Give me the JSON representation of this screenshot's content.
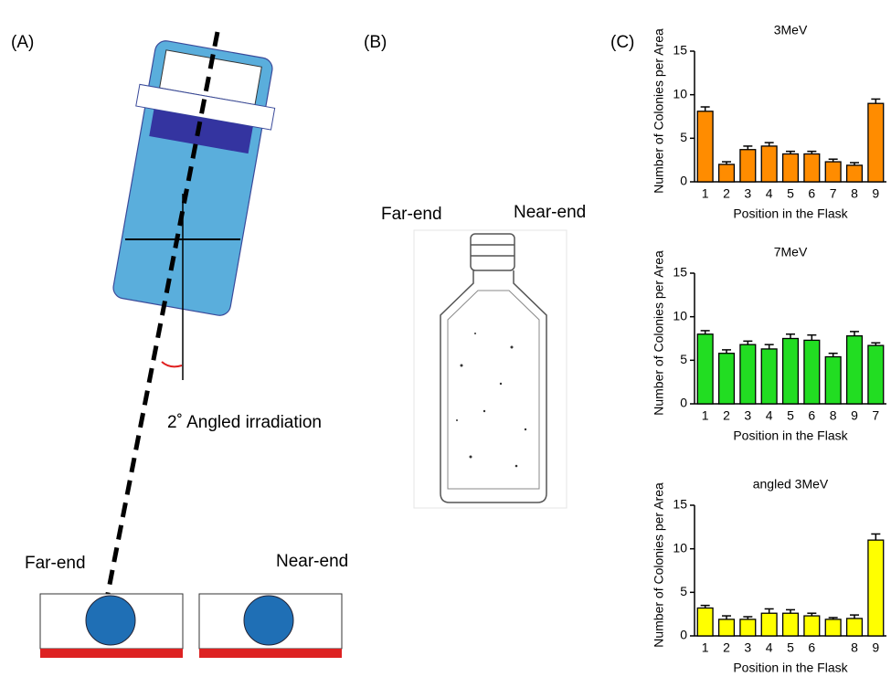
{
  "panels": {
    "a": {
      "label": "(A)",
      "annotation": "2˚ Angled irradiation",
      "left_label": "Far-end",
      "right_label": "Near-end"
    },
    "b": {
      "label": "(B)",
      "left_label": "Far-end",
      "right_label": "Near-end"
    },
    "c": {
      "label": "(C)"
    }
  },
  "chart_data": [
    {
      "type": "bar",
      "title": "3MeV",
      "x_label": "Position in the Flask",
      "y_label": "Number of Colonies per Area",
      "categories": [
        "1",
        "2",
        "3",
        "4",
        "5",
        "6",
        "7",
        "8",
        "9"
      ],
      "values": [
        8.1,
        2.0,
        3.7,
        4.1,
        3.2,
        3.2,
        2.3,
        1.9,
        9.0
      ],
      "errors": [
        0.5,
        0.3,
        0.4,
        0.4,
        0.3,
        0.3,
        0.3,
        0.3,
        0.5
      ],
      "color": "#ff8c00",
      "ylim": [
        0,
        15
      ],
      "yticks": [
        0,
        5,
        10,
        15
      ]
    },
    {
      "type": "bar",
      "title": "7MeV",
      "x_label": "Position in the Flask",
      "y_label": "Number of Colonies per Area",
      "categories": [
        "1",
        "2",
        "3",
        "4",
        "5",
        "6",
        "8",
        "9",
        "7"
      ],
      "values": [
        8.0,
        5.8,
        6.8,
        6.3,
        7.5,
        7.3,
        5.4,
        7.8,
        6.7
      ],
      "errors": [
        0.4,
        0.4,
        0.4,
        0.5,
        0.5,
        0.6,
        0.4,
        0.5,
        0.3
      ],
      "color": "#22dd22",
      "ylim": [
        0,
        15
      ],
      "yticks": [
        0,
        5,
        10,
        15
      ]
    },
    {
      "type": "bar",
      "title": "angled 3MeV",
      "x_label": "Position in the Flask",
      "y_label": "Number of Colonies per Area",
      "categories": [
        "1",
        "2",
        "3",
        "4",
        "5",
        "6",
        null,
        "8",
        "9"
      ],
      "values": [
        3.2,
        1.9,
        1.9,
        2.6,
        2.6,
        2.3,
        1.9,
        2.0,
        11.0
      ],
      "errors": [
        0.3,
        0.4,
        0.3,
        0.5,
        0.4,
        0.3,
        0.2,
        0.4,
        0.7
      ],
      "color": "#ffff00",
      "ylim": [
        0,
        15
      ],
      "yticks": [
        0,
        5,
        10,
        15
      ]
    }
  ]
}
